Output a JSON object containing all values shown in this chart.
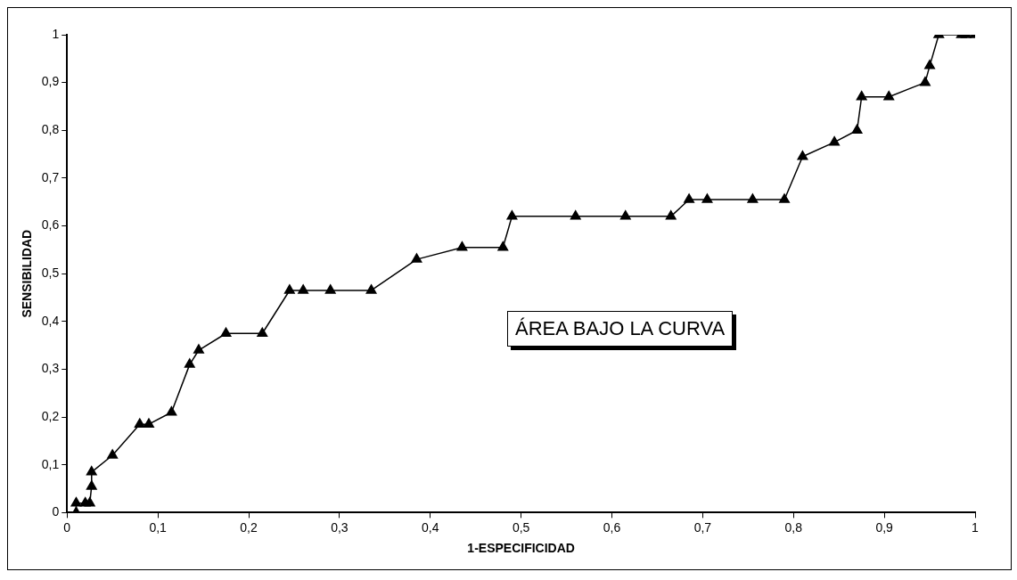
{
  "chart_data": {
    "type": "line",
    "xlabel": "1-ESPECIFICIDAD",
    "ylabel": "SENSIBILIDAD",
    "annotations": [
      "ÁREA BAJO LA CURVA"
    ],
    "marker": "triangle",
    "line_style": "solid",
    "grid": false,
    "legend": false,
    "xlim": [
      0,
      1
    ],
    "ylim": [
      0,
      1
    ],
    "xticks": [
      {
        "value": 0,
        "label": "0"
      },
      {
        "value": 0.1,
        "label": "0,1"
      },
      {
        "value": 0.2,
        "label": "0,2"
      },
      {
        "value": 0.3,
        "label": "0,3"
      },
      {
        "value": 0.4,
        "label": "0,4"
      },
      {
        "value": 0.5,
        "label": "0,5"
      },
      {
        "value": 0.6,
        "label": "0,6"
      },
      {
        "value": 0.7,
        "label": "0,7"
      },
      {
        "value": 0.8,
        "label": "0,8"
      },
      {
        "value": 0.9,
        "label": "0,9"
      },
      {
        "value": 1,
        "label": "1"
      }
    ],
    "yticks": [
      {
        "value": 0,
        "label": "0"
      },
      {
        "value": 0.1,
        "label": "0,1"
      },
      {
        "value": 0.2,
        "label": "0,2"
      },
      {
        "value": 0.3,
        "label": "0,3"
      },
      {
        "value": 0.4,
        "label": "0,4"
      },
      {
        "value": 0.5,
        "label": "0,5"
      },
      {
        "value": 0.6,
        "label": "0,6"
      },
      {
        "value": 0.7,
        "label": "0,7"
      },
      {
        "value": 0.8,
        "label": "0,8"
      },
      {
        "value": 0.9,
        "label": "0,9"
      },
      {
        "value": 1,
        "label": "1"
      }
    ],
    "series": [
      {
        "color": "#000000",
        "x": [
          0.01,
          0.01,
          0.02,
          0.025,
          0.027,
          0.027,
          0.05,
          0.08,
          0.09,
          0.115,
          0.135,
          0.145,
          0.175,
          0.215,
          0.245,
          0.26,
          0.29,
          0.335,
          0.385,
          0.435,
          0.48,
          0.49,
          0.56,
          0.615,
          0.665,
          0.685,
          0.705,
          0.755,
          0.79,
          0.81,
          0.845,
          0.87,
          0.875,
          0.905,
          0.945,
          0.95,
          0.96,
          0.985,
          0.99,
          1
        ],
        "values": [
          0,
          0.02,
          0.02,
          0.02,
          0.055,
          0.085,
          0.12,
          0.185,
          0.185,
          0.21,
          0.31,
          0.34,
          0.375,
          0.375,
          0.465,
          0.465,
          0.465,
          0.465,
          0.53,
          0.555,
          0.555,
          0.62,
          0.62,
          0.62,
          0.62,
          0.655,
          0.655,
          0.655,
          0.655,
          0.745,
          0.775,
          0.8,
          0.87,
          0.87,
          0.9,
          0.935,
          1,
          1,
          1,
          1
        ]
      }
    ]
  }
}
